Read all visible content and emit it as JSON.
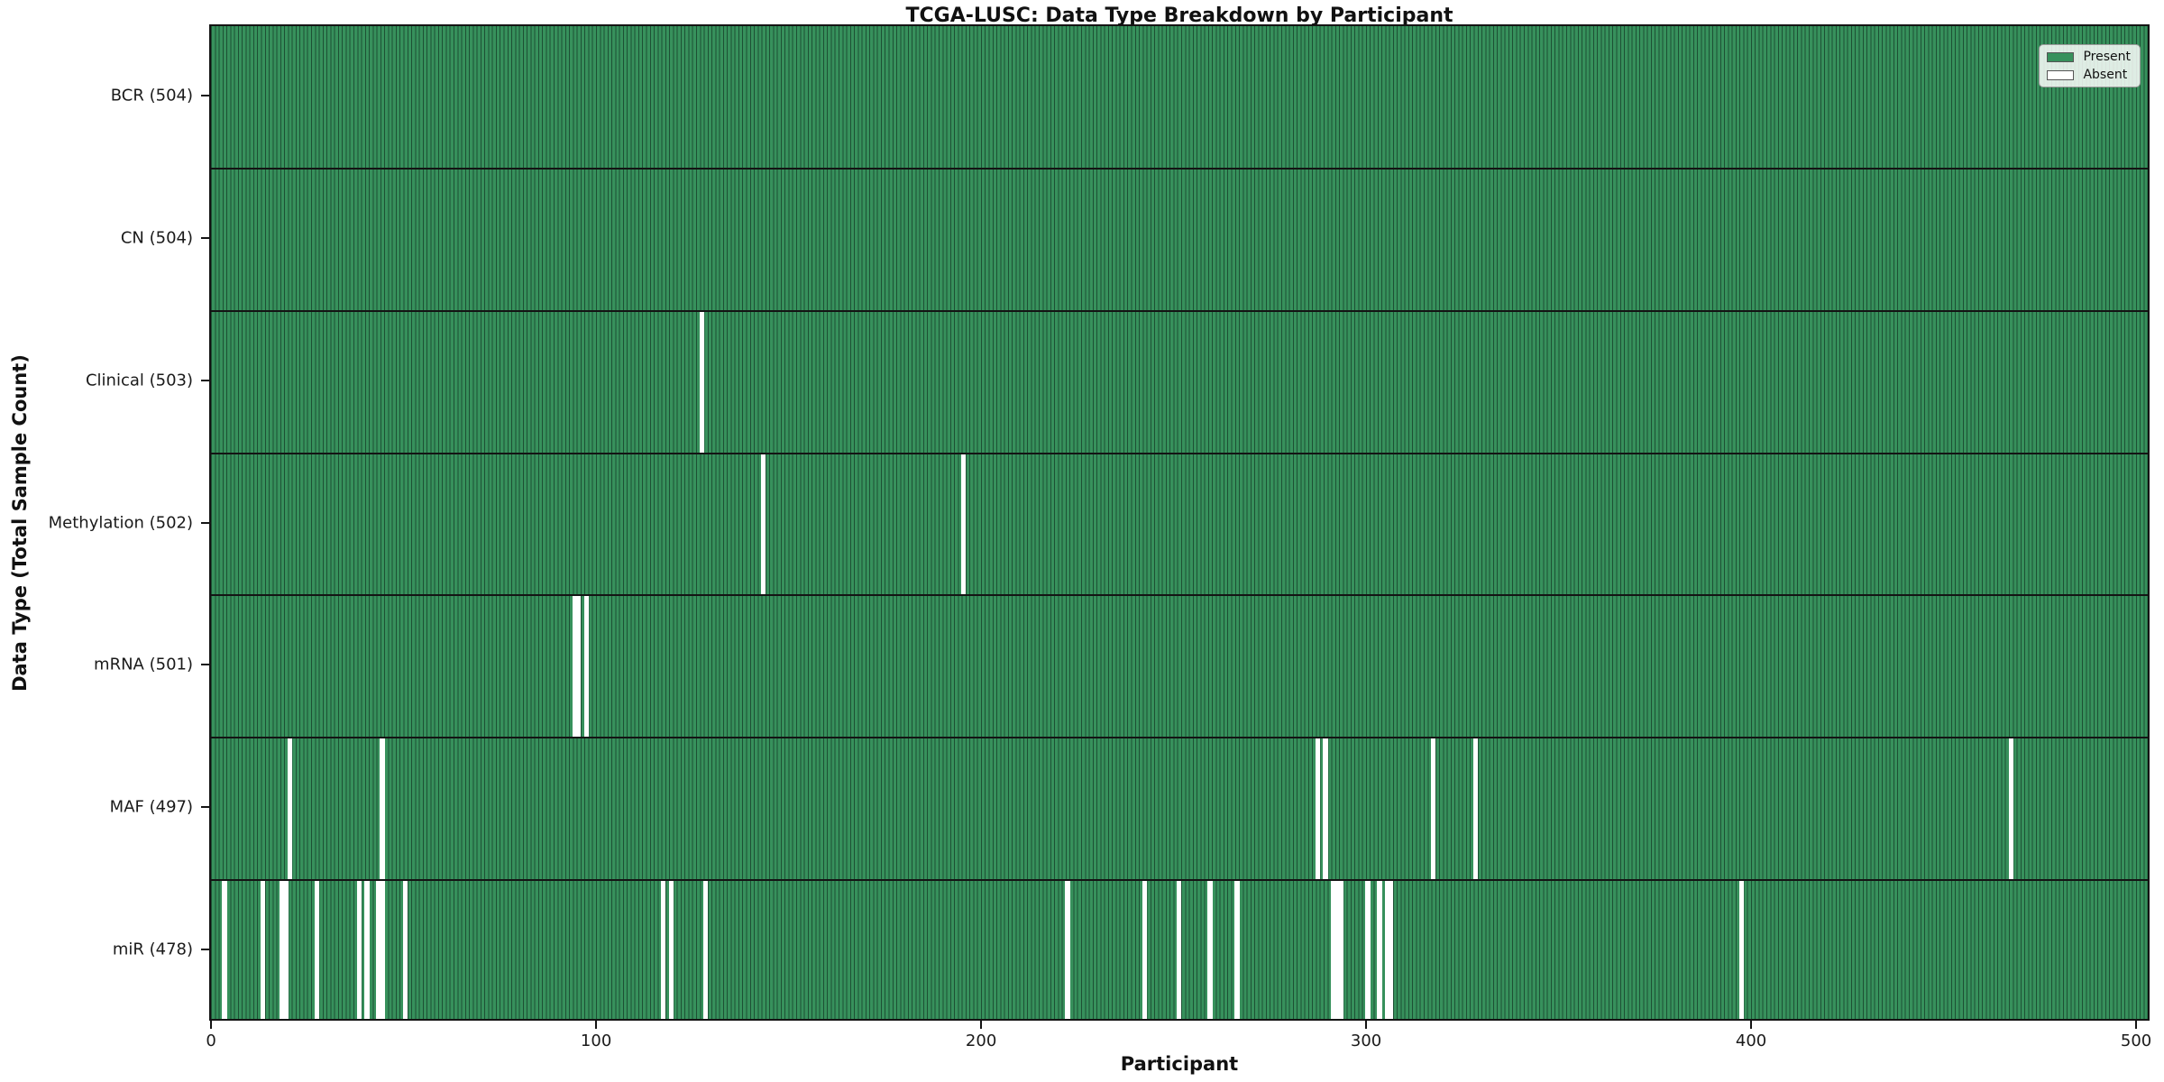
{
  "chart_data": {
    "type": "heatmap",
    "title": "TCGA-LUSC: Data Type Breakdown by Participant",
    "xlabel": "Participant",
    "ylabel": "Data Type (Total Sample Count)",
    "x_ticks": [
      0,
      100,
      200,
      300,
      400,
      500
    ],
    "n_participants": 504,
    "x_range": [
      -0.5,
      503.5
    ],
    "grid": false,
    "legend": {
      "position": "upper right",
      "entries": [
        {
          "label": "Present",
          "swatch": "present"
        },
        {
          "label": "Absent",
          "swatch": "absent"
        }
      ]
    },
    "y_tick_label_format": "{label} ({count})",
    "rows": [
      {
        "label": "BCR",
        "count": 504,
        "absent_participants": []
      },
      {
        "label": "CN",
        "count": 504,
        "absent_participants": []
      },
      {
        "label": "Clinical",
        "count": 503,
        "absent_participants": [
          127
        ]
      },
      {
        "label": "Methylation",
        "count": 502,
        "absent_participants": [
          143,
          195
        ]
      },
      {
        "label": "mRNA",
        "count": 501,
        "absent_participants": [
          94,
          95,
          97
        ]
      },
      {
        "label": "MAF",
        "count": 497,
        "absent_participants": [
          20,
          44,
          287,
          289,
          317,
          328,
          467
        ]
      },
      {
        "label": "miR",
        "count": 478,
        "absent_participants": [
          3,
          13,
          18,
          19,
          27,
          38,
          40,
          43,
          44,
          50,
          117,
          119,
          128,
          222,
          242,
          251,
          259,
          266,
          291,
          292,
          293,
          300,
          303,
          305,
          306,
          397
        ]
      }
    ],
    "colors": {
      "present_fill": "#37915c",
      "bar_edge": "#1d5034",
      "absent": "#ffffff",
      "row_separator": "#141414",
      "axis_text": "#1a1a1a",
      "legend_border": "#9a9a9a"
    }
  }
}
